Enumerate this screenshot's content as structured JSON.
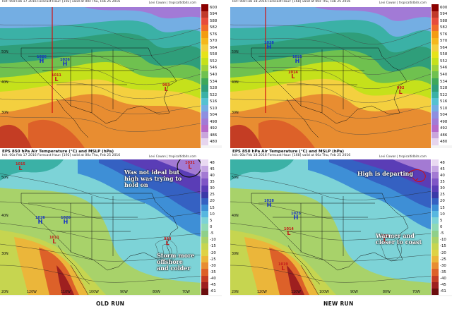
{
  "top_left": {
    "header_line1": "Init: 00z Feb 17 2016    Forecast Hour: [192]    valid at 00z Thu, Feb 25 2016",
    "credit": "Levi Cowan | tropicaltidbits.com",
    "colorbar": [
      "600",
      "594",
      "588",
      "582",
      "576",
      "570",
      "564",
      "558",
      "552",
      "546",
      "540",
      "534",
      "528",
      "522",
      "516",
      "510",
      "504",
      "498",
      "492",
      "486",
      "480"
    ],
    "pressure_marks": [
      {
        "p": "1026",
        "t": "H"
      },
      {
        "p": "1026",
        "t": "H"
      },
      {
        "p": "1011",
        "t": "L"
      },
      {
        "p": "993",
        "t": "L"
      }
    ],
    "lat_labels": [
      "50N",
      "40N",
      "30N"
    ]
  },
  "top_right": {
    "header_line1": "Init: 00z Feb 18 2016    Forecast Hour: [168]    valid at 00z Thu, Feb 25 2016",
    "credit": "Levi Cowan | tropicaltidbits.com",
    "colorbar": [
      "600",
      "594",
      "588",
      "582",
      "576",
      "570",
      "564",
      "558",
      "552",
      "546",
      "540",
      "534",
      "528",
      "522",
      "516",
      "510",
      "504",
      "498",
      "492",
      "486",
      "480"
    ],
    "pressure_marks": [
      {
        "p": "1028",
        "t": "H"
      },
      {
        "p": "1025",
        "t": "H"
      },
      {
        "p": "1014",
        "t": "L"
      },
      {
        "p": "992",
        "t": "L"
      }
    ],
    "lat_labels": [
      "50N",
      "40N",
      "30N"
    ]
  },
  "bottom_left": {
    "title": "EPS 850 hPa Air Temperature (°C) and MSLP (hPa)",
    "header_line1": "Init: 00z Feb 17 2016    Forecast Hour: [192]    valid at 00z Thu, Feb 25 2016",
    "credit": "Levi Cowan | tropicaltidbits.com",
    "colorbar": [
      "48",
      "45",
      "40",
      "35",
      "30",
      "25",
      "20",
      "15",
      "10",
      "5",
      "0",
      "-5",
      "-10",
      "-15",
      "-20",
      "-25",
      "-30",
      "-35",
      "-40",
      "-45",
      "-61"
    ],
    "annotations": {
      "a1": "Was not ideal but high was trying to hold on",
      "a2": "Storm more offshore and colder"
    },
    "pressure_marks": [
      {
        "p": "1026",
        "t": "H"
      },
      {
        "p": "1026",
        "t": "H"
      },
      {
        "p": "1011",
        "t": "L"
      },
      {
        "p": "993",
        "t": "L"
      },
      {
        "p": "1031",
        "t": "L"
      },
      {
        "p": "1015",
        "t": "L"
      }
    ],
    "lon_labels": [
      "120W",
      "110W",
      "100W",
      "90W",
      "80W",
      "70W"
    ],
    "lat_labels": [
      "50N",
      "40N",
      "30N",
      "20N"
    ],
    "run_label": "OLD RUN"
  },
  "bottom_right": {
    "title": "EPS 850 hPa Air Temperature (°C) and MSLP (hPa)",
    "header_line1": "Init: 00z Feb 18 2016    Forecast Hour: [168]    valid at 00z Thu, Feb 25 2016",
    "credit": "Levi Cowan | tropicaltidbits.com",
    "colorbar": [
      "48",
      "45",
      "40",
      "35",
      "30",
      "25",
      "20",
      "15",
      "10",
      "5",
      "0",
      "-5",
      "-10",
      "-15",
      "-20",
      "-25",
      "-30",
      "-35",
      "-40",
      "-45",
      "-61"
    ],
    "annotations": {
      "a1": "High is departing",
      "a2": "Warmer and closer to coast"
    },
    "pressure_marks": [
      {
        "p": "1028",
        "t": "H"
      },
      {
        "p": "1025",
        "t": "H"
      },
      {
        "p": "1014",
        "t": "L"
      },
      {
        "p": "992",
        "t": "L"
      },
      {
        "p": "1019",
        "t": "L"
      }
    ],
    "lon_labels": [
      "120W",
      "110W",
      "100W",
      "90W",
      "80W",
      "70W"
    ],
    "lat_labels": [
      "50N",
      "40N",
      "30N",
      "20N"
    ],
    "run_label": "NEW RUN"
  },
  "colors": {
    "height_scale": [
      "#8b0000",
      "#c0392b",
      "#e74c3c",
      "#f06b2a",
      "#f39c12",
      "#f5b81c",
      "#f4d03f",
      "#e6e31a",
      "#c5e11b",
      "#9ed23a",
      "#6fc14f",
      "#3ea85a",
      "#2f9e7a",
      "#3bb1a6",
      "#55c1d1",
      "#74aee3",
      "#8e8fe0",
      "#a27ad6",
      "#b66ac9",
      "#caa6dc",
      "#e6d5ee"
    ],
    "temp_scale": [
      "#e9d9f2",
      "#c6a7e3",
      "#a37ad3",
      "#7f56c6",
      "#5a3db6",
      "#3b3aa8",
      "#3561c2",
      "#3e8fd6",
      "#58b7e0",
      "#7dd3d7",
      "#8fd9b6",
      "#8fd08a",
      "#a8d26a",
      "#c6d550",
      "#dfd245",
      "#ebb63a",
      "#e88d31",
      "#dd6129",
      "#c43d24",
      "#9e1f1f",
      "#6b0d0d"
    ],
    "annotation_circle": "#111111",
    "red_marker_line": "#d10f0f",
    "high_text": "#1633c6",
    "low_text": "#c21a1a"
  }
}
